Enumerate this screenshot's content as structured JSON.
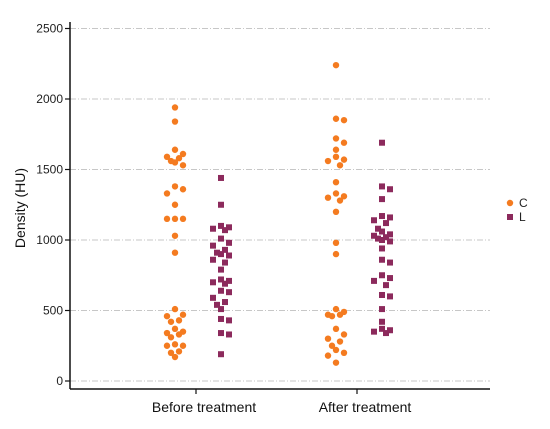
{
  "chart_data": {
    "type": "scatter",
    "subtype": "categorical-dot-plot",
    "title": "",
    "xlabel": "",
    "ylabel": "Density (HU)",
    "ylim": [
      -50,
      2550
    ],
    "yticks": [
      0,
      500,
      1000,
      1500,
      2000,
      2500
    ],
    "categories": [
      "Before treatment",
      "After treatment"
    ],
    "grid": "horizontal dash-dot",
    "legend_position": "right",
    "series": [
      {
        "name": "C",
        "marker": "circle",
        "color": "#f47b20",
        "points": [
          [
            "Before treatment",
            1940
          ],
          [
            "Before treatment",
            1840
          ],
          [
            "Before treatment",
            1640
          ],
          [
            "Before treatment",
            1610
          ],
          [
            "Before treatment",
            1590
          ],
          [
            "Before treatment",
            1580
          ],
          [
            "Before treatment",
            1560
          ],
          [
            "Before treatment",
            1550
          ],
          [
            "Before treatment",
            1530
          ],
          [
            "Before treatment",
            1380
          ],
          [
            "Before treatment",
            1360
          ],
          [
            "Before treatment",
            1330
          ],
          [
            "Before treatment",
            1250
          ],
          [
            "Before treatment",
            1150
          ],
          [
            "Before treatment",
            1150
          ],
          [
            "Before treatment",
            1150
          ],
          [
            "Before treatment",
            1030
          ],
          [
            "Before treatment",
            910
          ],
          [
            "Before treatment",
            510
          ],
          [
            "Before treatment",
            470
          ],
          [
            "Before treatment",
            460
          ],
          [
            "Before treatment",
            430
          ],
          [
            "Before treatment",
            420
          ],
          [
            "Before treatment",
            370
          ],
          [
            "Before treatment",
            350
          ],
          [
            "Before treatment",
            340
          ],
          [
            "Before treatment",
            330
          ],
          [
            "Before treatment",
            310
          ],
          [
            "Before treatment",
            260
          ],
          [
            "Before treatment",
            250
          ],
          [
            "Before treatment",
            250
          ],
          [
            "Before treatment",
            210
          ],
          [
            "Before treatment",
            200
          ],
          [
            "Before treatment",
            170
          ],
          [
            "After treatment",
            2240
          ],
          [
            "After treatment",
            1860
          ],
          [
            "After treatment",
            1850
          ],
          [
            "After treatment",
            1720
          ],
          [
            "After treatment",
            1690
          ],
          [
            "After treatment",
            1640
          ],
          [
            "After treatment",
            1590
          ],
          [
            "After treatment",
            1570
          ],
          [
            "After treatment",
            1560
          ],
          [
            "After treatment",
            1530
          ],
          [
            "After treatment",
            1410
          ],
          [
            "After treatment",
            1330
          ],
          [
            "After treatment",
            1310
          ],
          [
            "After treatment",
            1300
          ],
          [
            "After treatment",
            1280
          ],
          [
            "After treatment",
            1200
          ],
          [
            "After treatment",
            980
          ],
          [
            "After treatment",
            900
          ],
          [
            "After treatment",
            510
          ],
          [
            "After treatment",
            490
          ],
          [
            "After treatment",
            470
          ],
          [
            "After treatment",
            470
          ],
          [
            "After treatment",
            460
          ],
          [
            "After treatment",
            370
          ],
          [
            "After treatment",
            330
          ],
          [
            "After treatment",
            300
          ],
          [
            "After treatment",
            280
          ],
          [
            "After treatment",
            250
          ],
          [
            "After treatment",
            220
          ],
          [
            "After treatment",
            200
          ],
          [
            "After treatment",
            180
          ],
          [
            "After treatment",
            130
          ]
        ]
      },
      {
        "name": "L",
        "marker": "square",
        "color": "#8c2a5c",
        "points": [
          [
            "Before treatment",
            1440
          ],
          [
            "Before treatment",
            1250
          ],
          [
            "Before treatment",
            1100
          ],
          [
            "Before treatment",
            1090
          ],
          [
            "Before treatment",
            1080
          ],
          [
            "Before treatment",
            1070
          ],
          [
            "Before treatment",
            1010
          ],
          [
            "Before treatment",
            980
          ],
          [
            "Before treatment",
            960
          ],
          [
            "Before treatment",
            930
          ],
          [
            "Before treatment",
            910
          ],
          [
            "Before treatment",
            900
          ],
          [
            "Before treatment",
            890
          ],
          [
            "Before treatment",
            860
          ],
          [
            "Before treatment",
            840
          ],
          [
            "Before treatment",
            790
          ],
          [
            "Before treatment",
            720
          ],
          [
            "Before treatment",
            710
          ],
          [
            "Before treatment",
            700
          ],
          [
            "Before treatment",
            690
          ],
          [
            "Before treatment",
            640
          ],
          [
            "Before treatment",
            630
          ],
          [
            "Before treatment",
            590
          ],
          [
            "Before treatment",
            560
          ],
          [
            "Before treatment",
            540
          ],
          [
            "Before treatment",
            510
          ],
          [
            "Before treatment",
            440
          ],
          [
            "Before treatment",
            430
          ],
          [
            "Before treatment",
            340
          ],
          [
            "Before treatment",
            330
          ],
          [
            "Before treatment",
            190
          ],
          [
            "After treatment",
            1690
          ],
          [
            "After treatment",
            1380
          ],
          [
            "After treatment",
            1360
          ],
          [
            "After treatment",
            1290
          ],
          [
            "After treatment",
            1170
          ],
          [
            "After treatment",
            1160
          ],
          [
            "After treatment",
            1140
          ],
          [
            "After treatment",
            1120
          ],
          [
            "After treatment",
            1080
          ],
          [
            "After treatment",
            1060
          ],
          [
            "After treatment",
            1040
          ],
          [
            "After treatment",
            1030
          ],
          [
            "After treatment",
            1020
          ],
          [
            "After treatment",
            1010
          ],
          [
            "After treatment",
            1000
          ],
          [
            "After treatment",
            990
          ],
          [
            "After treatment",
            940
          ],
          [
            "After treatment",
            860
          ],
          [
            "After treatment",
            840
          ],
          [
            "After treatment",
            750
          ],
          [
            "After treatment",
            730
          ],
          [
            "After treatment",
            710
          ],
          [
            "After treatment",
            680
          ],
          [
            "After treatment",
            610
          ],
          [
            "After treatment",
            600
          ],
          [
            "After treatment",
            510
          ],
          [
            "After treatment",
            420
          ],
          [
            "After treatment",
            370
          ],
          [
            "After treatment",
            360
          ],
          [
            "After treatment",
            350
          ],
          [
            "After treatment",
            340
          ]
        ]
      }
    ]
  }
}
